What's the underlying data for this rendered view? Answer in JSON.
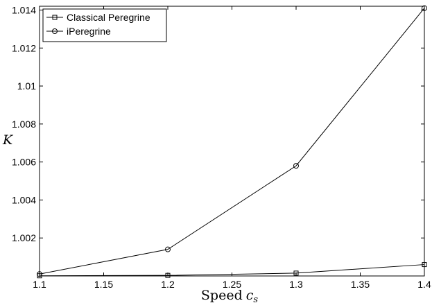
{
  "chart_data": {
    "type": "line",
    "x": [
      1.1,
      1.2,
      1.3,
      1.4
    ],
    "series": [
      {
        "name": "Classical Peregrine",
        "marker": "square",
        "values": [
          1.00001,
          1.00003,
          1.00015,
          1.0006
        ]
      },
      {
        "name": "iPeregrine",
        "marker": "circle",
        "values": [
          1.0001,
          1.0014,
          1.0058,
          1.0141
        ]
      }
    ],
    "xlabel": "Speed",
    "xlabel_subscript_symbol": "c",
    "xlabel_subscript": "s",
    "ylabel": "K",
    "xlim": [
      1.1,
      1.4
    ],
    "ylim": [
      1.0,
      1.0142
    ],
    "xticks": [
      "1.1",
      "1.15",
      "1.2",
      "1.25",
      "1.3",
      "1.35",
      "1.4"
    ],
    "yticks": [
      "1.002",
      "1.004",
      "1.006",
      "1.008",
      "1.01",
      "1.012",
      "1.014"
    ],
    "grid": false,
    "legend_position": "top-left",
    "line_color": "#000000"
  }
}
